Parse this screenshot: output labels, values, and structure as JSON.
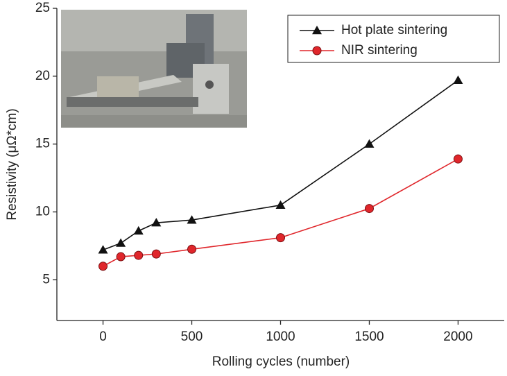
{
  "chart_data": {
    "type": "line",
    "x_label": "Rolling cycles (number)",
    "y_label": "Resistivity (μΩ*cm)",
    "x": [
      0,
      100,
      200,
      300,
      500,
      1000,
      1500,
      2000
    ],
    "series": [
      {
        "name": "Hot plate sintering",
        "color": "#111111",
        "marker": "triangle",
        "values": [
          7.2,
          7.7,
          8.6,
          9.2,
          9.4,
          10.5,
          15.0,
          19.7
        ]
      },
      {
        "name": "NIR sintering",
        "color": "#e0262b",
        "marker": "circle",
        "values": [
          6.0,
          6.7,
          6.8,
          6.9,
          7.25,
          8.1,
          10.25,
          13.9
        ]
      }
    ],
    "xlim": [
      -260,
      2260
    ],
    "ylim": [
      2,
      25
    ],
    "xticks": [
      0,
      500,
      1000,
      1500,
      2000
    ],
    "yticks": [
      5,
      10,
      15,
      20,
      25
    ],
    "grid": false,
    "legend": "upper right"
  }
}
